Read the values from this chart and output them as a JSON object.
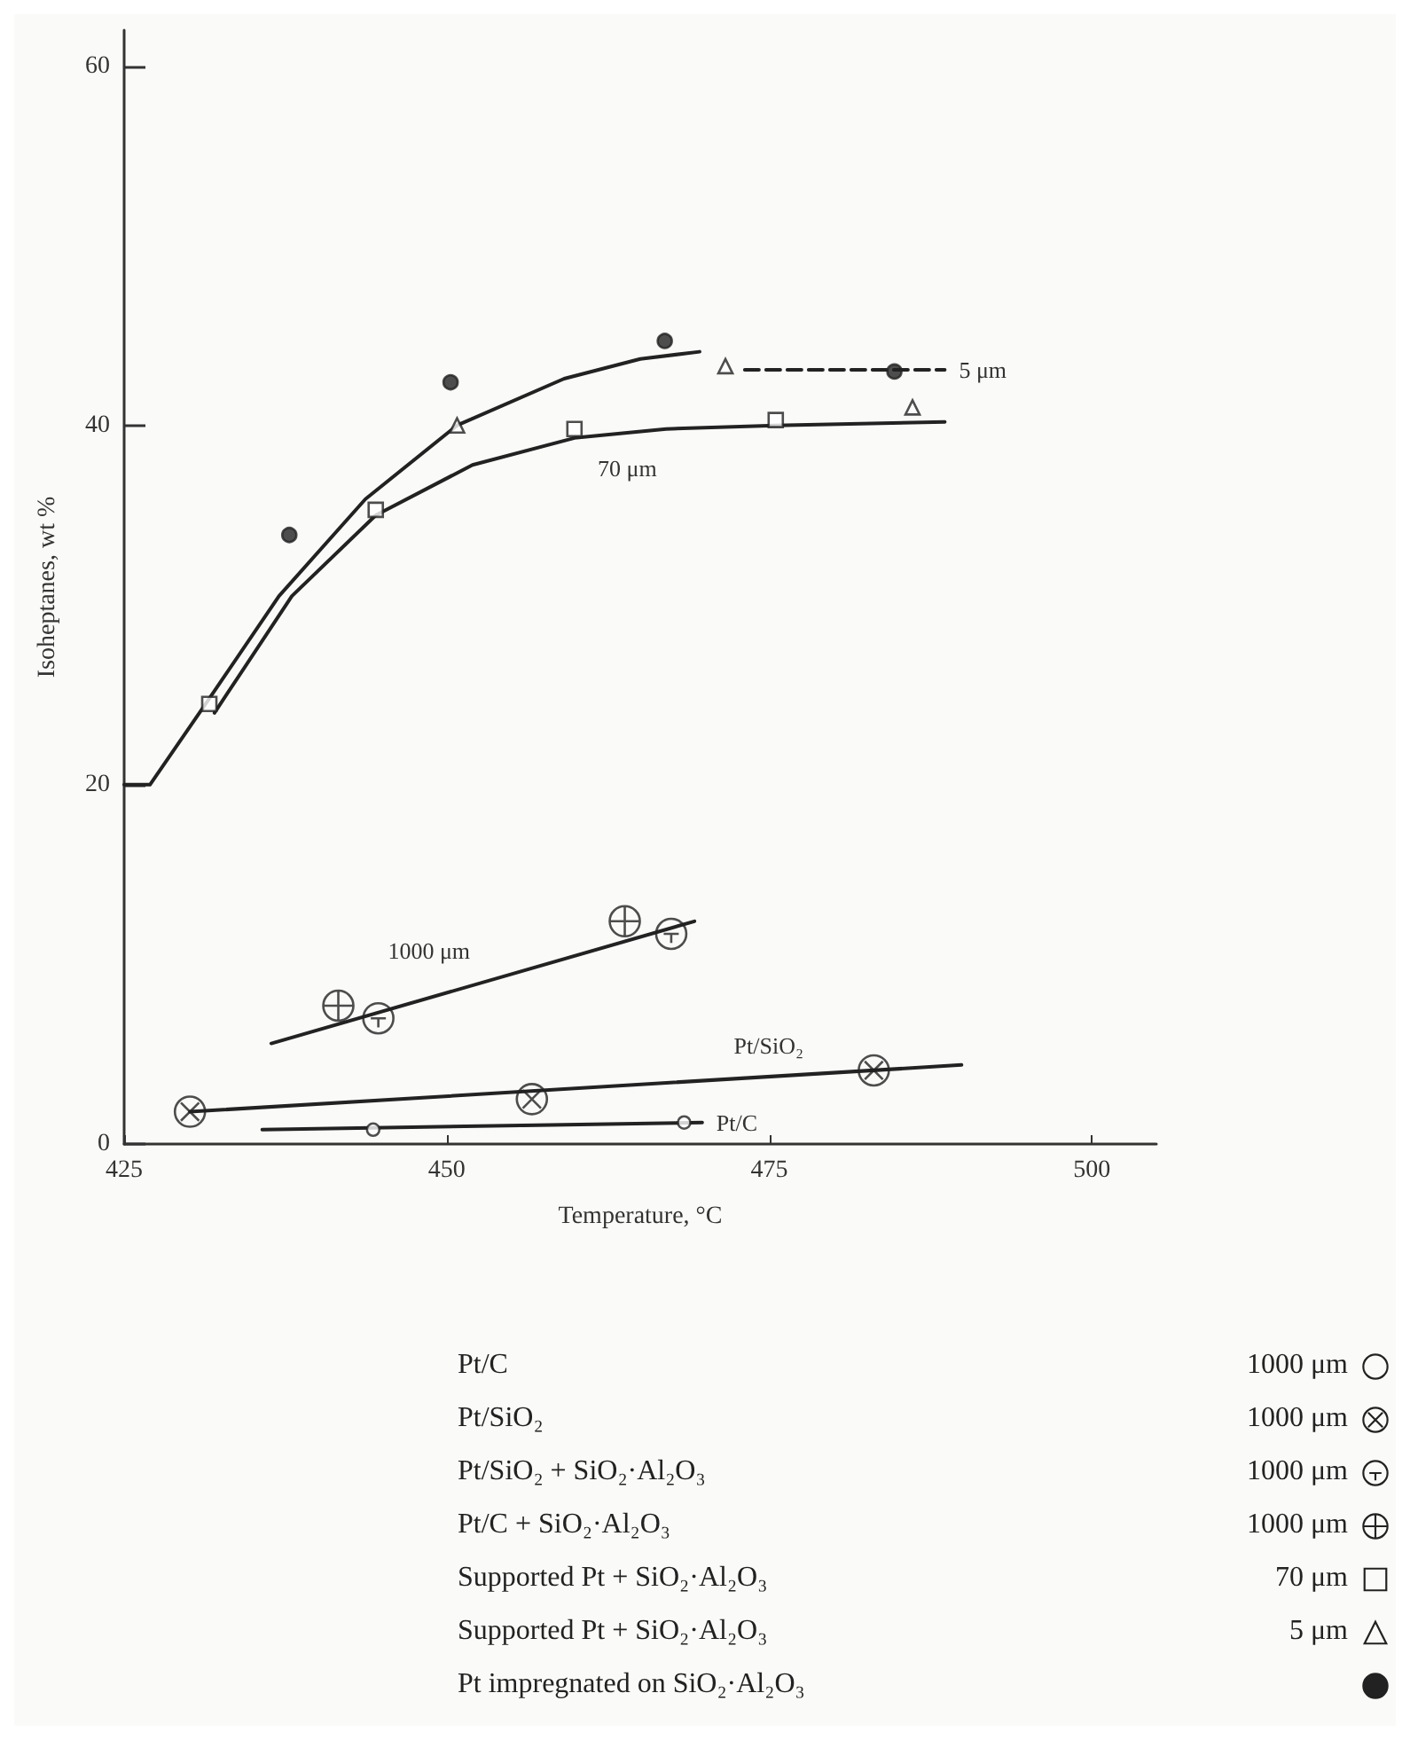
{
  "chart_data": {
    "type": "scatter",
    "xlabel": "Temperature, °C",
    "ylabel": "Isoheptanes, wt %",
    "xlim": [
      425,
      505
    ],
    "xticks": [
      425,
      450,
      475,
      500
    ],
    "ylim": [
      0,
      62
    ],
    "yticks": [
      0,
      20,
      40,
      60
    ],
    "grid": false,
    "series": [
      {
        "color": "#222222",
        "marker": "circle",
        "x": [
          444.3,
          468.4
        ],
        "values": [
          0.8,
          1.2
        ]
      },
      {
        "color": "#222222",
        "marker": "cross",
        "x": [
          430.1,
          456.6,
          483.1
        ],
        "values": [
          1.8,
          2.5,
          4.1
        ]
      },
      {
        "color": "#222222",
        "marker": "cross",
        "x": [
          444.7,
          467.4
        ],
        "values": [
          7.0,
          11.7
        ]
      },
      {
        "color": "#222222",
        "marker": "cross",
        "x": [
          441.6,
          463.8
        ],
        "values": [
          7.7,
          12.4
        ]
      },
      {
        "color": "#222222",
        "marker": "square",
        "x": [
          431.6,
          444.5,
          459.9,
          475.5
        ],
        "values": [
          24.5,
          35.3,
          39.8,
          40.3
        ]
      },
      {
        "color": "#222222",
        "marker": "triangle",
        "x": [
          450.8,
          471.6,
          486.1
        ],
        "values": [
          40.0,
          43.3,
          41.0
        ]
      },
      {
        "color": "#222222",
        "marker": "circle",
        "x": [
          437.8,
          450.3,
          466.9,
          484.7
        ],
        "values": [
          33.9,
          42.4,
          44.7,
          43.0
        ]
      },
      {
        "type": "line",
        "color": "#222222",
        "marker": "none",
        "line_style": "solid",
        "x": [
          425,
          427,
          431.6,
          437,
          443.7,
          450.8,
          459.1,
          465,
          469.6
        ],
        "values": [
          20,
          20,
          24.8,
          30.5,
          35.9,
          40,
          42.6,
          43.7,
          44.1
        ]
      },
      {
        "type": "line",
        "color": "#222222",
        "marker": "none",
        "line_style": "dashed",
        "x": [
          473.1,
          488.6
        ],
        "values": [
          43.1,
          43.1
        ]
      },
      {
        "type": "line",
        "color": "#222222",
        "marker": "none",
        "line_style": "solid",
        "x": [
          432,
          438,
          444.5,
          452,
          459.9,
          467,
          475.5,
          488.6
        ],
        "values": [
          24.0,
          30.5,
          35,
          37.8,
          39.3,
          39.8,
          40.0,
          40.2
        ]
      },
      {
        "type": "line",
        "color": "#222222",
        "marker": "none",
        "line_style": "solid",
        "x": [
          436.4,
          469.2
        ],
        "values": [
          5.6,
          12.4
        ]
      },
      {
        "type": "line",
        "color": "#222222",
        "marker": "none",
        "line_style": "solid",
        "x": [
          430.1,
          489.9
        ],
        "values": [
          1.8,
          4.4
        ]
      },
      {
        "type": "line",
        "color": "#222222",
        "marker": "none",
        "line_style": "solid",
        "x": [
          435.7,
          469.8
        ],
        "values": [
          0.8,
          1.2
        ]
      }
    ],
    "annotations": [
      {
        "text": "5 μm",
        "x": 488.6,
        "y": 43.1
      },
      {
        "text": "70 μm",
        "x": 464,
        "y": 39.6
      },
      {
        "text": "1000 μm",
        "x": 450,
        "y": 8.4
      },
      {
        "text": "Pt/SiO₂",
        "x": 477.7,
        "y": 3.9
      },
      {
        "text": "Pt/C",
        "x": 469.8,
        "y": 1.2
      },
      "Pt/C",
      "Pt/SiO₂",
      "Pt/SiO₂ + SiO₂·Al₂O₃",
      "Pt/C + SiO₂·Al₂O₃",
      "Supported Pt + SiO₂·Al₂O₃",
      "Supported Pt + SiO₂·Al₂O₃",
      "Pt impregnated on SiO₂·Al₂O₃",
      "1000 μm",
      "1000 μm",
      "1000 μm",
      "1000 μm",
      "70 μm",
      "5 μm"
    ]
  }
}
